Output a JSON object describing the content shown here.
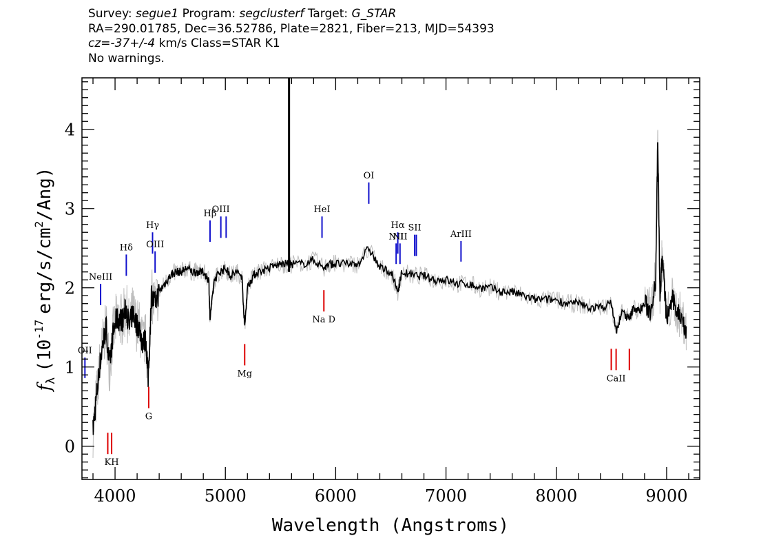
{
  "header": {
    "survey_label": "Survey:",
    "survey": "segue1",
    "program_label": "Program:",
    "program": "segclusterf",
    "target_label": "Target:",
    "target": "G_STAR",
    "line2": "RA=290.01785, Dec=36.52786, Plate=2821, Fiber=213, MJD=54393",
    "cz_label": "cz=",
    "cz_value": "-37+/-4",
    "cz_rest": "km/s Class=STAR K1",
    "line4": "No warnings."
  },
  "chart_data": {
    "type": "line",
    "xlabel": "Wavelength (Angstroms)",
    "ylabel_prefix": "f",
    "ylabel_sub": "λ",
    "ylabel_unit_a": "(10",
    "ylabel_exp": "-17",
    "ylabel_unit_b": "erg/s/cm",
    "ylabel_exp2": "2",
    "ylabel_unit_c": "/Ang)",
    "xlim": [
      3700,
      9300
    ],
    "ylim": [
      -0.42,
      4.65
    ],
    "xticks": [
      4000,
      5000,
      6000,
      7000,
      8000,
      9000
    ],
    "xtick_labels": [
      "4000",
      "5000",
      "6000",
      "7000",
      "8000",
      "9000"
    ],
    "yticks": [
      0,
      1,
      2,
      3,
      4
    ],
    "ytick_labels": [
      "0",
      "1",
      "2",
      "3",
      "4"
    ],
    "grid": false,
    "series": [
      {
        "role": "flux",
        "color": "#000000",
        "x": [
          3800,
          3830,
          3860,
          3890,
          3920,
          3950,
          3980,
          4010,
          4040,
          4070,
          4100,
          4130,
          4160,
          4190,
          4220,
          4250,
          4280,
          4300,
          4330,
          4360,
          4400,
          4450,
          4500,
          4550,
          4600,
          4650,
          4700,
          4750,
          4800,
          4850,
          4861,
          4900,
          4950,
          5000,
          5050,
          5100,
          5150,
          5175,
          5200,
          5250,
          5300,
          5400,
          5500,
          5577,
          5600,
          5700,
          5800,
          5890,
          5950,
          6000,
          6100,
          6200,
          6300,
          6400,
          6500,
          6563,
          6600,
          6700,
          6800,
          6900,
          7000,
          7100,
          7200,
          7300,
          7400,
          7500,
          7600,
          7700,
          7800,
          7900,
          8000,
          8100,
          8200,
          8300,
          8400,
          8500,
          8542,
          8600,
          8662,
          8700,
          8750,
          8800,
          8850,
          8900,
          8920,
          8940,
          8960,
          9000,
          9050,
          9100,
          9150,
          9180
        ],
        "y": [
          0.2,
          0.6,
          1.0,
          1.3,
          1.5,
          1.0,
          1.4,
          1.6,
          1.6,
          1.6,
          1.75,
          1.5,
          1.7,
          1.55,
          1.5,
          1.3,
          1.35,
          0.85,
          1.9,
          1.8,
          1.95,
          2.05,
          2.15,
          2.2,
          2.2,
          2.25,
          2.2,
          2.2,
          2.2,
          2.1,
          1.6,
          2.1,
          2.2,
          2.25,
          2.15,
          2.2,
          2.15,
          1.5,
          2.0,
          2.15,
          2.2,
          2.25,
          2.3,
          2.3,
          2.3,
          2.3,
          2.35,
          2.25,
          2.3,
          2.3,
          2.3,
          2.3,
          2.5,
          2.25,
          2.2,
          1.95,
          2.2,
          2.15,
          2.15,
          2.1,
          2.1,
          2.05,
          2.05,
          2.0,
          2.0,
          1.95,
          1.95,
          1.9,
          1.85,
          1.85,
          1.85,
          1.8,
          1.8,
          1.75,
          1.75,
          1.8,
          1.45,
          1.7,
          1.6,
          1.75,
          1.7,
          1.8,
          1.7,
          2.1,
          3.9,
          1.9,
          2.4,
          1.6,
          1.85,
          1.7,
          1.6,
          1.4
        ]
      },
      {
        "role": "spikes",
        "color": "#000000",
        "x": [
          5577
        ],
        "y": [
          4.65
        ]
      }
    ],
    "emission_lines": [
      {
        "label": "OII",
        "x": 3727,
        "y_top": 1.12,
        "y_bottom": 0.86
      },
      {
        "label": "NeIII",
        "x": 3869,
        "y_top": 2.05,
        "y_bottom": 1.78
      },
      {
        "label": "Hδ",
        "x": 4102,
        "y_top": 2.42,
        "y_bottom": 2.15
      },
      {
        "label": "Hγ",
        "x": 4340,
        "y_top": 2.7,
        "y_bottom": 2.43
      },
      {
        "label": "OIII",
        "x": 4363,
        "y_top": 2.46,
        "y_bottom": 2.19
      },
      {
        "label": "Hβ",
        "x": 4861,
        "y_top": 2.85,
        "y_bottom": 2.58
      },
      {
        "label": "OIII",
        "x": 4959,
        "y_top": 2.9,
        "y_bottom": 2.63
      },
      {
        "label": "",
        "x": 5007,
        "y_top": 2.9,
        "y_bottom": 2.63
      },
      {
        "label": "HeI",
        "x": 5876,
        "y_top": 2.9,
        "y_bottom": 2.63
      },
      {
        "label": "OI",
        "x": 6300,
        "y_top": 3.33,
        "y_bottom": 3.06
      },
      {
        "label": "NII",
        "x": 6548,
        "y_top": 2.56,
        "y_bottom": 2.3
      },
      {
        "label": "Hα",
        "x": 6563,
        "y_top": 2.7,
        "y_bottom": 2.43
      },
      {
        "label": "NII",
        "x": 6583,
        "y_top": 2.56,
        "y_bottom": 2.3
      },
      {
        "label": "SII",
        "x": 6716,
        "y_top": 2.67,
        "y_bottom": 2.4
      },
      {
        "label": "",
        "x": 6731,
        "y_top": 2.67,
        "y_bottom": 2.4
      },
      {
        "label": "ArIII",
        "x": 7136,
        "y_top": 2.59,
        "y_bottom": 2.33
      }
    ],
    "absorption_lines": [
      {
        "label": "",
        "x": 3934,
        "y_top": 0.17,
        "y_bottom": -0.1
      },
      {
        "label": "KH",
        "x": 3969,
        "y_top": 0.17,
        "y_bottom": -0.1
      },
      {
        "label": "G",
        "x": 4305,
        "y_top": 0.75,
        "y_bottom": 0.48
      },
      {
        "label": "Mg",
        "x": 5175,
        "y_top": 1.29,
        "y_bottom": 1.02
      },
      {
        "label": "Na D",
        "x": 5893,
        "y_top": 1.97,
        "y_bottom": 1.7
      },
      {
        "label": "",
        "x": 8498,
        "y_top": 1.23,
        "y_bottom": 0.96
      },
      {
        "label": "CaII",
        "x": 8542,
        "y_top": 1.23,
        "y_bottom": 0.96
      },
      {
        "label": "",
        "x": 8662,
        "y_top": 1.23,
        "y_bottom": 0.96
      }
    ]
  }
}
